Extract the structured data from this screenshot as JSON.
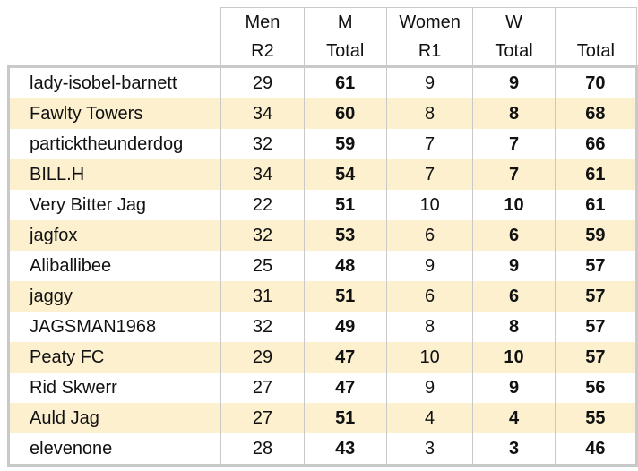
{
  "header": {
    "row1": [
      "",
      "Men",
      "M",
      "Women",
      "W",
      ""
    ],
    "row2": [
      "",
      "R2",
      "Total",
      "R1",
      "Total",
      "Total"
    ]
  },
  "rows": [
    {
      "name": "lady-isobel-barnett",
      "men_r2": "29",
      "m_total": "61",
      "women_r1": "9",
      "w_total": "9",
      "total": "70"
    },
    {
      "name": "Fawlty Towers",
      "men_r2": "34",
      "m_total": "60",
      "women_r1": "8",
      "w_total": "8",
      "total": "68"
    },
    {
      "name": "particktheunderdog",
      "men_r2": "32",
      "m_total": "59",
      "women_r1": "7",
      "w_total": "7",
      "total": "66"
    },
    {
      "name": "BILL.H",
      "men_r2": "34",
      "m_total": "54",
      "women_r1": "7",
      "w_total": "7",
      "total": "61"
    },
    {
      "name": "Very Bitter Jag",
      "men_r2": "22",
      "m_total": "51",
      "women_r1": "10",
      "w_total": "10",
      "total": "61"
    },
    {
      "name": "jagfox",
      "men_r2": "32",
      "m_total": "53",
      "women_r1": "6",
      "w_total": "6",
      "total": "59"
    },
    {
      "name": "Aliballibee",
      "men_r2": "25",
      "m_total": "48",
      "women_r1": "9",
      "w_total": "9",
      "total": "57"
    },
    {
      "name": "jaggy",
      "men_r2": "31",
      "m_total": "51",
      "women_r1": "6",
      "w_total": "6",
      "total": "57"
    },
    {
      "name": "JAGSMAN1968",
      "men_r2": "32",
      "m_total": "49",
      "women_r1": "8",
      "w_total": "8",
      "total": "57"
    },
    {
      "name": "Peaty FC",
      "men_r2": "29",
      "m_total": "47",
      "women_r1": "10",
      "w_total": "10",
      "total": "57"
    },
    {
      "name": "Rid Skwerr",
      "men_r2": "27",
      "m_total": "47",
      "women_r1": "9",
      "w_total": "9",
      "total": "56"
    },
    {
      "name": "Auld Jag",
      "men_r2": "27",
      "m_total": "51",
      "women_r1": "4",
      "w_total": "4",
      "total": "55"
    },
    {
      "name": "elevenone",
      "men_r2": "28",
      "m_total": "43",
      "women_r1": "3",
      "w_total": "3",
      "total": "46"
    }
  ],
  "colors": {
    "alt_row": "#fcf0cf",
    "border": "#c9c9c9",
    "text": "#111111"
  }
}
